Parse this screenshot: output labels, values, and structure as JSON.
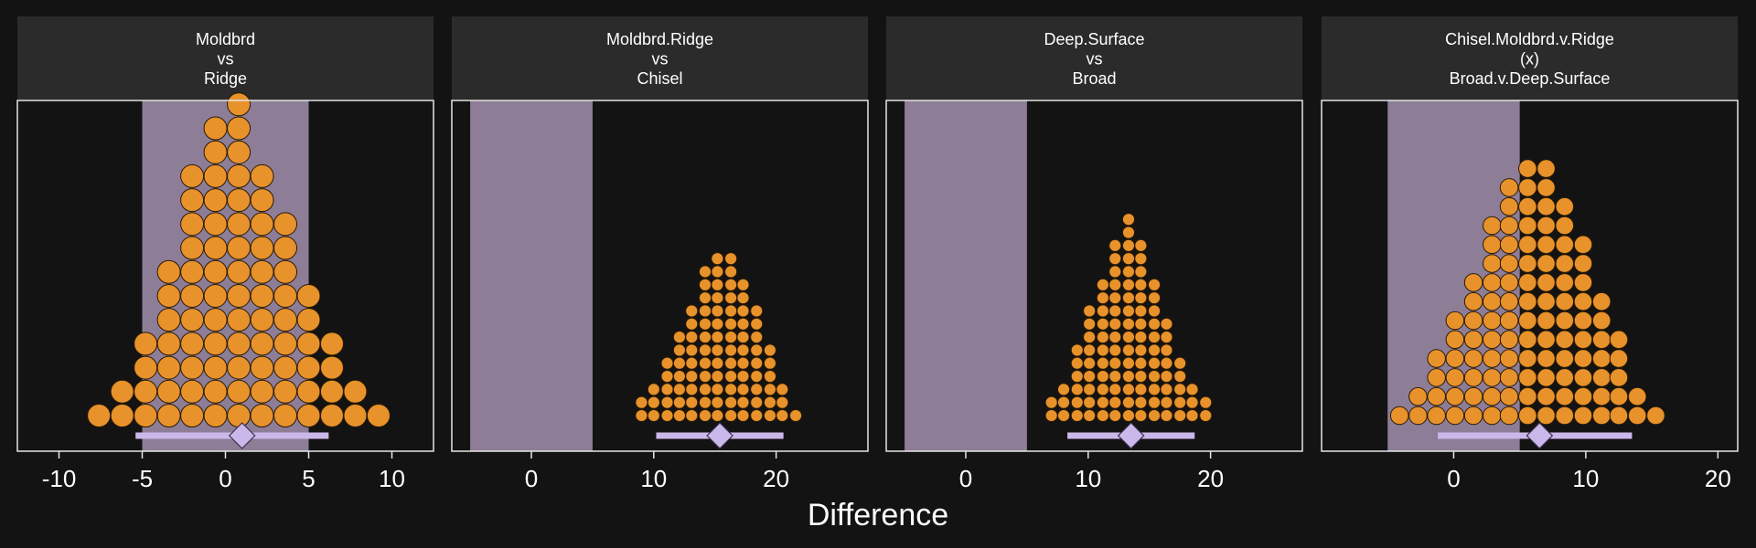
{
  "chart_data": {
    "type": "dotplot",
    "xlabel": "Difference",
    "colors": {
      "background": "#131313",
      "strip_fill": "#2b2b2b",
      "panel_border": "#e6e6e6",
      "rope_band": "#8e7d96",
      "dot_fill": "#e8922c",
      "dot_stroke": "#2a1a05",
      "interval": "#cbb8ea",
      "point_fill": "#cbb8ea"
    },
    "panels": [
      {
        "title_lines": [
          "Moldbrd",
          "vs",
          "Ridge"
        ],
        "xlim": [
          -12.5,
          12.5
        ],
        "ticks": [
          -10,
          -5,
          0,
          5,
          10
        ],
        "tick_labels": [
          "-10",
          "-5",
          "0",
          "5",
          "10"
        ],
        "rope": [
          -5,
          5
        ],
        "dot_spacing": 1.44,
        "dots": [
          {
            "x": -7.6,
            "n": 1
          },
          {
            "x": -6.2,
            "n": 2
          },
          {
            "x": -4.8,
            "n": 4
          },
          {
            "x": -3.4,
            "n": 7
          },
          {
            "x": -2.0,
            "n": 11
          },
          {
            "x": -0.6,
            "n": 13
          },
          {
            "x": 0.8,
            "n": 14
          },
          {
            "x": 2.2,
            "n": 11
          },
          {
            "x": 3.6,
            "n": 9
          },
          {
            "x": 5.0,
            "n": 6
          },
          {
            "x": 6.4,
            "n": 4
          },
          {
            "x": 7.8,
            "n": 2
          },
          {
            "x": 9.2,
            "n": 1
          }
        ],
        "interval": [
          -5.4,
          6.2
        ],
        "point": 1.0
      },
      {
        "title_lines": [
          "Moldbrd.Ridge",
          "vs",
          "Chisel"
        ],
        "xlim": [
          -6.5,
          27.5
        ],
        "ticks": [
          0,
          10,
          20
        ],
        "tick_labels": [
          "0",
          "10",
          "20"
        ],
        "rope": [
          -5,
          5
        ],
        "dot_spacing": 1.07,
        "dots": [
          {
            "x": 9.0,
            "n": 2
          },
          {
            "x": 10.0,
            "n": 3
          },
          {
            "x": 11.1,
            "n": 5
          },
          {
            "x": 12.1,
            "n": 7
          },
          {
            "x": 13.1,
            "n": 9
          },
          {
            "x": 14.2,
            "n": 12
          },
          {
            "x": 15.2,
            "n": 13
          },
          {
            "x": 16.3,
            "n": 13
          },
          {
            "x": 17.3,
            "n": 11
          },
          {
            "x": 18.4,
            "n": 9
          },
          {
            "x": 19.5,
            "n": 6
          },
          {
            "x": 20.5,
            "n": 3
          },
          {
            "x": 21.6,
            "n": 1
          }
        ],
        "interval": [
          10.2,
          20.6
        ],
        "point": 15.4
      },
      {
        "title_lines": [
          "Deep.Surface",
          "vs",
          "Broad"
        ],
        "xlim": [
          -6.5,
          27.5
        ],
        "ticks": [
          0,
          10,
          20
        ],
        "tick_labels": [
          "0",
          "10",
          "20"
        ],
        "rope": [
          -5,
          5
        ],
        "dot_spacing": 1.07,
        "dots": [
          {
            "x": 7.0,
            "n": 2
          },
          {
            "x": 8.0,
            "n": 3
          },
          {
            "x": 9.1,
            "n": 6
          },
          {
            "x": 10.1,
            "n": 9
          },
          {
            "x": 11.2,
            "n": 11
          },
          {
            "x": 12.2,
            "n": 14
          },
          {
            "x": 13.3,
            "n": 16
          },
          {
            "x": 14.3,
            "n": 14
          },
          {
            "x": 15.4,
            "n": 11
          },
          {
            "x": 16.4,
            "n": 8
          },
          {
            "x": 17.5,
            "n": 5
          },
          {
            "x": 18.5,
            "n": 3
          },
          {
            "x": 19.6,
            "n": 2
          }
        ],
        "interval": [
          8.3,
          18.7
        ],
        "point": 13.5
      },
      {
        "title_lines": [
          "Chisel.Moldbrd.v.Ridge",
          "(x)",
          "Broad.v.Deep.Surface"
        ],
        "xlim": [
          -10,
          21.5
        ],
        "ticks": [
          0,
          10,
          20
        ],
        "tick_labels": [
          "0",
          "10",
          "20"
        ],
        "rope": [
          -5,
          5
        ],
        "dot_spacing": 1.44,
        "dots": [
          {
            "x": -4.1,
            "n": 1
          },
          {
            "x": -2.7,
            "n": 2
          },
          {
            "x": -1.3,
            "n": 4
          },
          {
            "x": 0.1,
            "n": 6
          },
          {
            "x": 1.5,
            "n": 8
          },
          {
            "x": 2.9,
            "n": 11
          },
          {
            "x": 4.2,
            "n": 13
          },
          {
            "x": 5.6,
            "n": 14
          },
          {
            "x": 7.0,
            "n": 14
          },
          {
            "x": 8.4,
            "n": 12
          },
          {
            "x": 9.8,
            "n": 10
          },
          {
            "x": 11.2,
            "n": 7
          },
          {
            "x": 12.5,
            "n": 5
          },
          {
            "x": 13.9,
            "n": 2
          },
          {
            "x": 15.3,
            "n": 1
          }
        ],
        "interval": [
          -1.2,
          13.5
        ],
        "point": 6.5
      }
    ]
  }
}
